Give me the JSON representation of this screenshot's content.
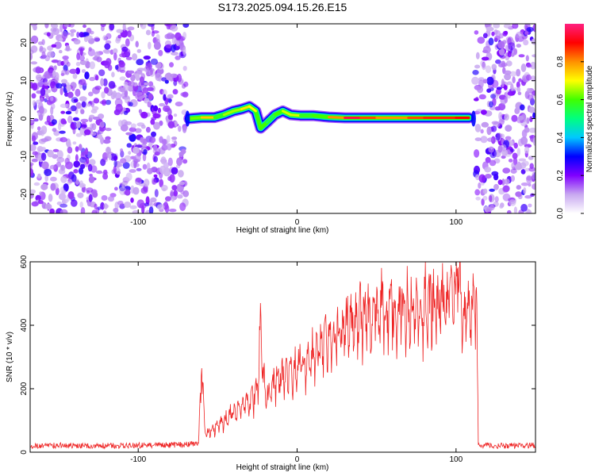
{
  "title": "S173.2025.094.15.26.E15",
  "chart_data": [
    {
      "type": "heatmap",
      "xlabel": "Height of straight line (km)",
      "ylabel": "Frequency (Hz)",
      "xlim": [
        -168,
        150
      ],
      "ylim": [
        -25,
        25
      ],
      "xticks": [
        -100,
        0,
        100
      ],
      "yticks": [
        -20,
        -10,
        0,
        10,
        20
      ],
      "colorbar": {
        "label": "Normalized spectral amplitude",
        "range": [
          0,
          1
        ],
        "ticks": [
          0.0,
          0.2,
          0.4,
          0.6,
          0.8
        ],
        "colors": [
          "#ffffff",
          "#c8a8f0",
          "#8000ff",
          "#0000ff",
          "#00c8ff",
          "#00ff80",
          "#40ff00",
          "#ffff00",
          "#ff9000",
          "#ff0000",
          "#ff2080"
        ]
      },
      "noise_regions_km": [
        [
          -168,
          -70
        ],
        [
          112,
          150
        ]
      ],
      "signal_track": [
        {
          "x": -68,
          "y": 0.0,
          "amp": 0.35
        },
        {
          "x": -60,
          "y": 0.3,
          "amp": 0.9
        },
        {
          "x": -52,
          "y": 0.3,
          "amp": 0.6
        },
        {
          "x": -46,
          "y": 1.0,
          "amp": 0.55
        },
        {
          "x": -40,
          "y": 2.0,
          "amp": 0.75
        },
        {
          "x": -35,
          "y": 2.5,
          "amp": 0.55
        },
        {
          "x": -30,
          "y": 3.2,
          "amp": 0.9
        },
        {
          "x": -26,
          "y": 2.0,
          "amp": 0.5
        },
        {
          "x": -23,
          "y": -2.5,
          "amp": 0.45
        },
        {
          "x": -19,
          "y": -1.0,
          "amp": 0.45
        },
        {
          "x": -14,
          "y": 1.0,
          "amp": 0.6
        },
        {
          "x": -9,
          "y": 2.0,
          "amp": 0.6
        },
        {
          "x": -4,
          "y": 1.0,
          "amp": 0.75
        },
        {
          "x": 2,
          "y": 0.8,
          "amp": 0.6
        },
        {
          "x": 10,
          "y": 0.8,
          "amp": 0.55
        },
        {
          "x": 20,
          "y": 0.4,
          "amp": 0.65
        },
        {
          "x": 30,
          "y": 0.2,
          "amp": 0.95
        },
        {
          "x": 40,
          "y": 0.2,
          "amp": 0.95
        },
        {
          "x": 50,
          "y": 0.2,
          "amp": 0.75
        },
        {
          "x": 60,
          "y": 0.2,
          "amp": 0.85
        },
        {
          "x": 70,
          "y": 0.2,
          "amp": 0.75
        },
        {
          "x": 80,
          "y": 0.2,
          "amp": 0.95
        },
        {
          "x": 90,
          "y": 0.2,
          "amp": 0.8
        },
        {
          "x": 100,
          "y": 0.2,
          "amp": 0.95
        },
        {
          "x": 108,
          "y": 0.2,
          "amp": 0.85
        }
      ]
    },
    {
      "type": "line",
      "xlabel": "Height of straight line (km)",
      "ylabel": "SNR (10 * v/v)",
      "xlim": [
        -168,
        150
      ],
      "ylim": [
        0,
        600
      ],
      "xticks": [
        -100,
        0,
        100
      ],
      "yticks": [
        0,
        200,
        400,
        600
      ],
      "color": "#ee2222",
      "series": [
        {
          "x": [
            -168,
            -150,
            -130,
            -110,
            -90,
            -70,
            -62,
            -60,
            -58,
            -54,
            -50,
            -45,
            -40,
            -35,
            -30,
            -25,
            -23,
            -20,
            -15,
            -10,
            -5,
            0,
            5,
            10,
            15,
            20,
            25,
            30,
            35,
            40,
            45,
            50,
            55,
            60,
            65,
            70,
            75,
            80,
            85,
            90,
            95,
            100,
            101,
            105,
            110,
            113,
            114,
            120,
            130,
            140,
            150
          ],
          "y": [
            20,
            22,
            20,
            21,
            22,
            24,
            30,
            290,
            60,
            70,
            90,
            110,
            140,
            150,
            170,
            200,
            420,
            190,
            230,
            250,
            270,
            280,
            310,
            330,
            350,
            380,
            400,
            420,
            440,
            455,
            470,
            480,
            485,
            490,
            492,
            495,
            497,
            500,
            502,
            505,
            505,
            520,
            600,
            495,
            490,
            490,
            20,
            22,
            20,
            21,
            22
          ]
        }
      ]
    }
  ]
}
